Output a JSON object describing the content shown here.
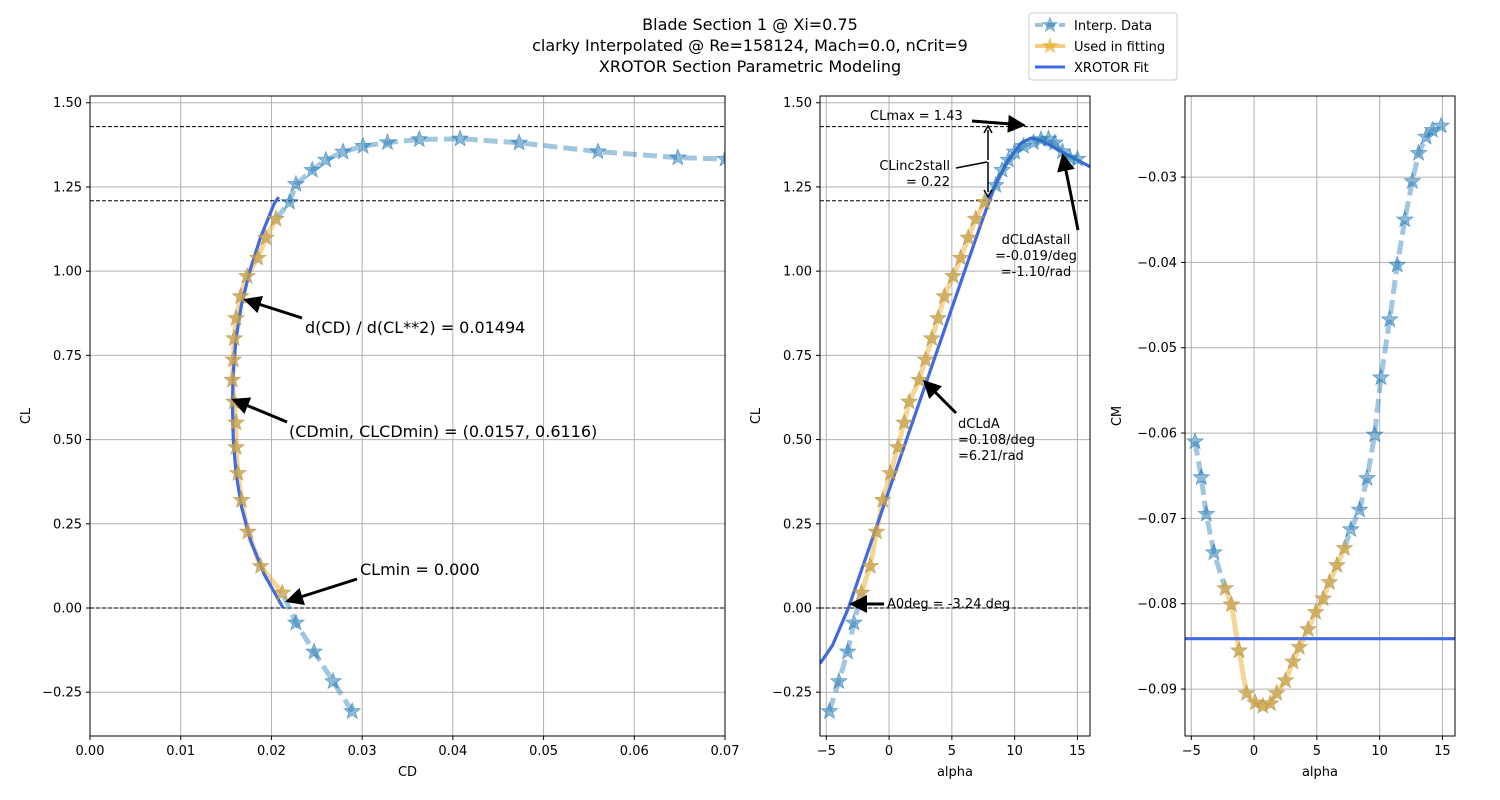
{
  "title": {
    "line1": "Blade Section 1 @ Xi=0.75",
    "line2": "clarky Interpolated @ Re=158124, Mach=0.0, nCrit=9",
    "line3": "XROTOR Section Parametric Modeling"
  },
  "legend": {
    "interp": "Interp. Data",
    "used": "Used in fitting",
    "fit": "XROTOR Fit",
    "placement": "top-right (figure)"
  },
  "colors": {
    "interp": "#1f77b4",
    "used": "#e8a317",
    "fit": "#4169e1",
    "grid": "#b0b0b0"
  },
  "annotations": {
    "polar_dcd": "d(CD) / d(CL**2) = 0.01494",
    "polar_cdmin": "(CDmin, CLCDmin) = (0.0157, 0.6116)",
    "polar_clmin": "CLmin = 0.000",
    "lift_clmax": "CLmax = 1.43",
    "lift_clinc_1": "CLinc2stall",
    "lift_clinc_2": "= 0.22",
    "lift_dclda_1": "dCLdA",
    "lift_dclda_2": "=0.108/deg",
    "lift_dclda_3": "=6.21/rad",
    "lift_stall_1": "dCLdAstall",
    "lift_stall_2": "=-0.019/deg",
    "lift_stall_3": "=-1.10/rad",
    "lift_a0": "A0deg = -3.24 deg"
  },
  "chart_data": [
    {
      "type": "line",
      "name": "drag-polar",
      "xlabel": "CD",
      "ylabel": "CL",
      "xlim": [
        0.0,
        0.07
      ],
      "ylim": [
        -0.38,
        1.52
      ],
      "xticks": [
        0.0,
        0.01,
        0.02,
        0.03,
        0.04,
        0.05,
        0.06,
        0.07
      ],
      "xtick_labels": [
        "0.00",
        "0.01",
        "0.02",
        "0.03",
        "0.04",
        "0.05",
        "0.06",
        "0.07"
      ],
      "yticks": [
        -0.25,
        0.0,
        0.25,
        0.5,
        0.75,
        1.0,
        1.25,
        1.5
      ],
      "ytick_labels": [
        "−0.25",
        "0.00",
        "0.25",
        "0.50",
        "0.75",
        "1.00",
        "1.25",
        "1.50"
      ],
      "hlines": [
        0.0,
        1.209,
        1.429
      ],
      "grid": true,
      "series": [
        {
          "name": "Interp. Data",
          "points": [
            [
              0.0289,
              -0.307
            ],
            [
              0.0268,
              -0.218
            ],
            [
              0.0247,
              -0.13
            ],
            [
              0.0227,
              -0.044
            ],
            [
              0.022,
              1.205
            ],
            [
              0.0227,
              1.258
            ],
            [
              0.0245,
              1.3
            ],
            [
              0.026,
              1.33
            ],
            [
              0.0279,
              1.354
            ],
            [
              0.0301,
              1.371
            ],
            [
              0.0328,
              1.382
            ],
            [
              0.0363,
              1.391
            ],
            [
              0.0408,
              1.393
            ],
            [
              0.0473,
              1.381
            ],
            [
              0.056,
              1.355
            ],
            [
              0.0648,
              1.337
            ],
            [
              0.07,
              1.333
            ]
          ]
        },
        {
          "name": "Used in fitting",
          "points": [
            [
              0.0212,
              0.045
            ],
            [
              0.0188,
              0.124
            ],
            [
              0.0174,
              0.226
            ],
            [
              0.0167,
              0.32
            ],
            [
              0.0163,
              0.4
            ],
            [
              0.0161,
              0.477
            ],
            [
              0.0161,
              0.55
            ],
            [
              0.0159,
              0.612
            ],
            [
              0.0157,
              0.677
            ],
            [
              0.0158,
              0.737
            ],
            [
              0.0159,
              0.8
            ],
            [
              0.0161,
              0.86
            ],
            [
              0.0166,
              0.925
            ],
            [
              0.0173,
              0.985
            ],
            [
              0.0185,
              1.039
            ],
            [
              0.0194,
              1.099
            ],
            [
              0.0205,
              1.155
            ]
          ]
        },
        {
          "name": "XROTOR Fit",
          "points": [
            [
              0.0213,
              0.0
            ],
            [
              0.0192,
              0.1
            ],
            [
              0.0177,
              0.2
            ],
            [
              0.0167,
              0.3
            ],
            [
              0.0161,
              0.4
            ],
            [
              0.0158,
              0.5
            ],
            [
              0.0157,
              0.6116
            ],
            [
              0.0158,
              0.7
            ],
            [
              0.0161,
              0.8
            ],
            [
              0.0167,
              0.9
            ],
            [
              0.0176,
              1.0
            ],
            [
              0.0188,
              1.1
            ],
            [
              0.0203,
              1.2
            ],
            [
              0.0208,
              1.22
            ]
          ]
        }
      ]
    },
    {
      "type": "line",
      "name": "lift-curve",
      "xlabel": "alpha",
      "ylabel": "CL",
      "xlim": [
        -5.5,
        16
      ],
      "ylim": [
        -0.38,
        1.52
      ],
      "xticks": [
        -5,
        0,
        5,
        10,
        15
      ],
      "xtick_labels": [
        "−5",
        "0",
        "5",
        "10",
        "15"
      ],
      "yticks": [
        -0.25,
        0.0,
        0.25,
        0.5,
        0.75,
        1.0,
        1.25,
        1.5
      ],
      "ytick_labels": [
        "−0.25",
        "0.00",
        "0.25",
        "0.50",
        "0.75",
        "1.00",
        "1.25",
        "1.50"
      ],
      "hlines": [
        0.0,
        1.209,
        1.429
      ],
      "grid": true,
      "series": [
        {
          "name": "Interp. Data",
          "points": [
            [
              -4.75,
              -0.307
            ],
            [
              -4.0,
              -0.218
            ],
            [
              -3.3,
              -0.13
            ],
            [
              -2.8,
              -0.044
            ],
            [
              8.5,
              1.255
            ],
            [
              9.0,
              1.3
            ],
            [
              9.5,
              1.33
            ],
            [
              10.0,
              1.354
            ],
            [
              10.7,
              1.371
            ],
            [
              11.5,
              1.382
            ],
            [
              12.1,
              1.391
            ],
            [
              12.7,
              1.393
            ],
            [
              13.2,
              1.381
            ],
            [
              13.8,
              1.355
            ],
            [
              14.4,
              1.337
            ],
            [
              15.0,
              1.333
            ]
          ]
        },
        {
          "name": "Used in fitting",
          "points": [
            [
              -2.2,
              0.045
            ],
            [
              -1.5,
              0.124
            ],
            [
              -1.0,
              0.226
            ],
            [
              -0.5,
              0.32
            ],
            [
              0.1,
              0.4
            ],
            [
              0.7,
              0.477
            ],
            [
              1.2,
              0.55
            ],
            [
              1.6,
              0.612
            ],
            [
              2.4,
              0.677
            ],
            [
              2.9,
              0.737
            ],
            [
              3.4,
              0.8
            ],
            [
              3.9,
              0.86
            ],
            [
              4.4,
              0.925
            ],
            [
              5.1,
              0.985
            ],
            [
              5.7,
              1.039
            ],
            [
              6.3,
              1.099
            ],
            [
              6.9,
              1.155
            ],
            [
              7.6,
              1.205
            ]
          ]
        },
        {
          "name": "XROTOR Fit",
          "points": [
            [
              -5.5,
              -0.165
            ],
            [
              -4.5,
              -0.11
            ],
            [
              -3.24,
              0.0
            ],
            [
              -2,
              0.134
            ],
            [
              0,
              0.35
            ],
            [
              2,
              0.566
            ],
            [
              4,
              0.782
            ],
            [
              6,
              0.998
            ],
            [
              7.5,
              1.16
            ],
            [
              8.5,
              1.26
            ],
            [
              9.5,
              1.33
            ],
            [
              10.5,
              1.38
            ],
            [
              11.3,
              1.395
            ],
            [
              12,
              1.39
            ],
            [
              13,
              1.37
            ],
            [
              14,
              1.35
            ],
            [
              15,
              1.33
            ],
            [
              16,
              1.31
            ]
          ]
        }
      ]
    },
    {
      "type": "line",
      "name": "moment-curve",
      "xlabel": "alpha",
      "ylabel": "CM",
      "xlim": [
        -5.5,
        16
      ],
      "ylim": [
        -0.0955,
        -0.0205
      ],
      "xticks": [
        -5,
        0,
        5,
        10,
        15
      ],
      "xtick_labels": [
        "−5",
        "0",
        "5",
        "10",
        "15"
      ],
      "yticks": [
        -0.09,
        -0.08,
        -0.07,
        -0.06,
        -0.05,
        -0.04,
        -0.03
      ],
      "ytick_labels": [
        "−0.09",
        "−0.08",
        "−0.07",
        "−0.06",
        "−0.05",
        "−0.04",
        "−0.03"
      ],
      "grid": true,
      "series": [
        {
          "name": "Interp. Data",
          "points": [
            [
              -4.7,
              -0.061
            ],
            [
              -4.2,
              -0.0652
            ],
            [
              -3.8,
              -0.0695
            ],
            [
              -3.2,
              -0.074
            ],
            [
              7.7,
              -0.0713
            ],
            [
              8.4,
              -0.069
            ],
            [
              9.0,
              -0.0653
            ],
            [
              9.6,
              -0.0602
            ],
            [
              10.1,
              -0.0535
            ],
            [
              10.8,
              -0.0467
            ],
            [
              11.4,
              -0.0403
            ],
            [
              12.0,
              -0.035
            ],
            [
              12.6,
              -0.0305
            ],
            [
              13.1,
              -0.0272
            ],
            [
              13.7,
              -0.0253
            ],
            [
              14.2,
              -0.0245
            ],
            [
              14.9,
              -0.024
            ]
          ]
        },
        {
          "name": "Used in fitting",
          "points": [
            [
              -2.3,
              -0.0782
            ],
            [
              -1.8,
              -0.0801
            ],
            [
              -1.2,
              -0.0855
            ],
            [
              -0.6,
              -0.0905
            ],
            [
              0.1,
              -0.0916
            ],
            [
              0.7,
              -0.092
            ],
            [
              1.3,
              -0.0917
            ],
            [
              1.8,
              -0.0905
            ],
            [
              2.5,
              -0.089
            ],
            [
              3.1,
              -0.0868
            ],
            [
              3.6,
              -0.0851
            ],
            [
              4.3,
              -0.083
            ],
            [
              4.9,
              -0.081
            ],
            [
              5.5,
              -0.0794
            ],
            [
              6.0,
              -0.0775
            ],
            [
              6.6,
              -0.0755
            ],
            [
              7.2,
              -0.0735
            ]
          ]
        },
        {
          "name": "XROTOR Fit",
          "points": [
            [
              -5.5,
              -0.0841
            ],
            [
              16,
              -0.0841
            ]
          ]
        }
      ]
    }
  ]
}
